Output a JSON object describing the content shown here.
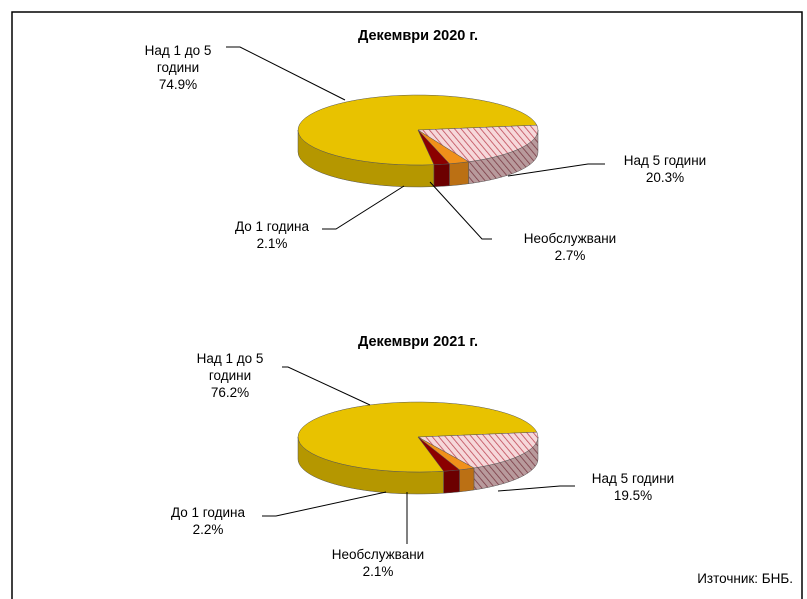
{
  "chart_data": [
    {
      "type": "pie3d",
      "title": "Декември 2020 г.",
      "categories": [
        "Над 1 до 5 години",
        "Над 5 години",
        "Необслужвани",
        "До 1 година"
      ],
      "values": [
        74.9,
        20.3,
        2.7,
        2.1
      ],
      "value_labels": [
        "74.9%",
        "20.3%",
        "2.7%",
        "2.1%"
      ],
      "colors": [
        "#e8c200",
        "#f4c4c8",
        "#f0901a",
        "#8b0000"
      ],
      "hatch": [
        false,
        true,
        false,
        false
      ]
    },
    {
      "type": "pie3d",
      "title": "Декември 2021 г.",
      "categories": [
        "Над 1 до 5 години",
        "Над 5 години",
        "Необслужвани",
        "До 1 година"
      ],
      "values": [
        76.2,
        19.5,
        2.1,
        2.2
      ],
      "value_labels": [
        "76.2%",
        "19.5%",
        "2.1%",
        "2.2%"
      ],
      "colors": [
        "#e8c200",
        "#f4c4c8",
        "#f0901a",
        "#8b0000"
      ],
      "hatch": [
        false,
        true,
        false,
        false
      ]
    }
  ],
  "source": "Източник: БНБ."
}
